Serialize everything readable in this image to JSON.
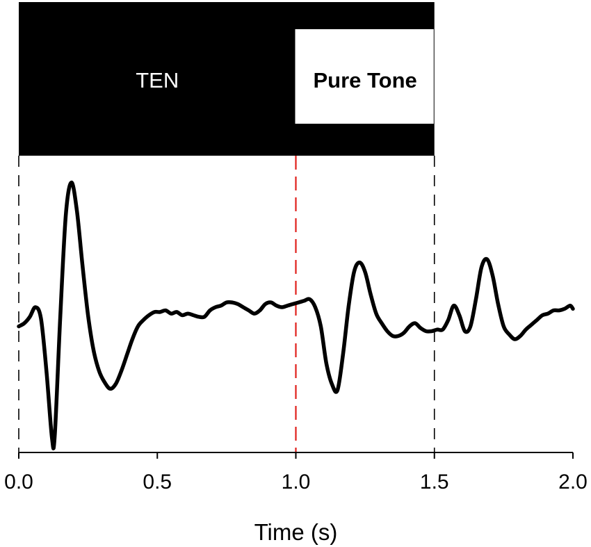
{
  "chart_data": {
    "type": "line",
    "title": "",
    "xlabel": "Time (s)",
    "ylabel": "",
    "xlim": [
      0.0,
      2.0
    ],
    "ylim": [
      -1.0,
      1.0
    ],
    "grid": false,
    "x_ticks": [
      0.0,
      0.5,
      1.0,
      1.5,
      2.0
    ],
    "x_tick_labels": [
      "0.0",
      "0.5",
      "1.0",
      "1.5",
      "2.0"
    ],
    "stimulus_bars": [
      {
        "label": "TEN",
        "start": 0.0,
        "end": 1.5,
        "fill": "#000000",
        "text_color": "#ffffff"
      },
      {
        "label": "Pure Tone",
        "start": 1.0,
        "end": 1.5,
        "fill": "#ffffff",
        "text_color": "#000000"
      }
    ],
    "markers": [
      {
        "x": 0.0,
        "color": "#000000",
        "style": "dashed"
      },
      {
        "x": 1.0,
        "color": "#e0201b",
        "style": "dashed"
      },
      {
        "x": 1.5,
        "color": "#000000",
        "style": "dashed"
      }
    ],
    "series": [
      {
        "color": "#000000",
        "x": [
          0.0,
          0.02,
          0.04,
          0.06,
          0.08,
          0.1,
          0.12,
          0.13,
          0.15,
          0.17,
          0.19,
          0.21,
          0.23,
          0.25,
          0.27,
          0.29,
          0.31,
          0.33,
          0.35,
          0.37,
          0.39,
          0.41,
          0.43,
          0.45,
          0.47,
          0.49,
          0.51,
          0.53,
          0.55,
          0.57,
          0.59,
          0.61,
          0.63,
          0.65,
          0.67,
          0.69,
          0.71,
          0.73,
          0.75,
          0.77,
          0.79,
          0.81,
          0.83,
          0.85,
          0.87,
          0.89,
          0.91,
          0.93,
          0.95,
          0.97,
          0.99,
          1.01,
          1.03,
          1.05,
          1.07,
          1.09,
          1.11,
          1.13,
          1.15,
          1.17,
          1.19,
          1.21,
          1.23,
          1.25,
          1.27,
          1.29,
          1.31,
          1.33,
          1.35,
          1.37,
          1.39,
          1.41,
          1.43,
          1.45,
          1.47,
          1.49,
          1.51,
          1.53,
          1.55,
          1.57,
          1.59,
          1.61,
          1.63,
          1.65,
          1.67,
          1.69,
          1.71,
          1.73,
          1.75,
          1.77,
          1.79,
          1.81,
          1.83,
          1.85,
          1.87,
          1.89,
          1.91,
          1.93,
          1.95,
          1.97,
          1.99,
          2.0
        ],
        "y": [
          -0.02,
          0.0,
          0.04,
          0.1,
          0.03,
          -0.3,
          -0.72,
          -0.7,
          0.05,
          0.68,
          0.88,
          0.7,
          0.36,
          0.05,
          -0.17,
          -0.3,
          -0.37,
          -0.41,
          -0.38,
          -0.3,
          -0.2,
          -0.1,
          -0.02,
          0.02,
          0.05,
          0.07,
          0.07,
          0.08,
          0.06,
          0.07,
          0.05,
          0.06,
          0.05,
          0.04,
          0.04,
          0.08,
          0.1,
          0.11,
          0.13,
          0.13,
          0.12,
          0.1,
          0.08,
          0.06,
          0.08,
          0.12,
          0.13,
          0.11,
          0.1,
          0.11,
          0.12,
          0.13,
          0.14,
          0.15,
          0.1,
          -0.02,
          -0.25,
          -0.38,
          -0.42,
          -0.2,
          0.1,
          0.32,
          0.38,
          0.32,
          0.18,
          0.06,
          0.0,
          -0.05,
          -0.08,
          -0.08,
          -0.06,
          -0.02,
          0.0,
          -0.03,
          -0.05,
          -0.05,
          -0.04,
          -0.04,
          0.02,
          0.11,
          0.05,
          -0.05,
          -0.02,
          0.15,
          0.35,
          0.4,
          0.3,
          0.12,
          -0.02,
          -0.07,
          -0.1,
          -0.08,
          -0.04,
          -0.01,
          0.02,
          0.05,
          0.06,
          0.08,
          0.08,
          0.09,
          0.11,
          0.09
        ]
      }
    ]
  }
}
